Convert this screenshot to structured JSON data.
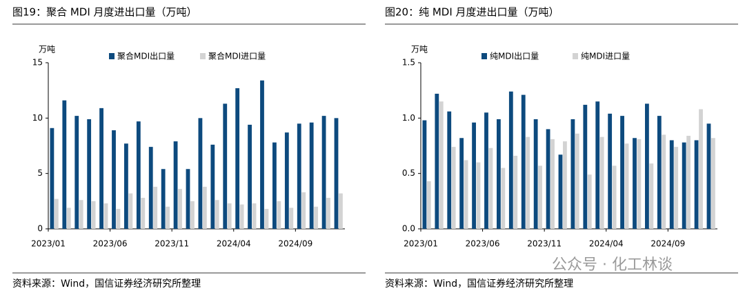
{
  "chart_data": [
    {
      "type": "bar",
      "title": "图19：聚合 MDI 月度进出口量（万吨）",
      "y_label": "万吨",
      "categories": [
        "2023/01",
        null,
        null,
        null,
        null,
        "2023/06",
        null,
        null,
        null,
        null,
        "2023/11",
        null,
        null,
        null,
        null,
        "2024/04",
        null,
        null,
        null,
        null,
        "2024/09",
        null,
        null,
        null
      ],
      "series": [
        {
          "name": "聚合MDI出口量",
          "color": "#0d4a7e",
          "values": [
            9.1,
            11.6,
            10.2,
            9.9,
            10.9,
            8.9,
            7.7,
            9.7,
            7.4,
            5.4,
            7.9,
            5.4,
            10.0,
            7.6,
            11.3,
            12.7,
            9.4,
            13.4,
            7.8,
            8.7,
            9.5,
            9.6,
            10.2,
            10.0
          ]
        },
        {
          "name": "聚合MDI进口量",
          "color": "#d3d3d3",
          "values": [
            2.7,
            1.9,
            2.6,
            2.5,
            2.3,
            1.8,
            3.2,
            2.8,
            3.8,
            2.0,
            3.6,
            2.5,
            3.8,
            2.6,
            2.3,
            2.2,
            2.3,
            1.8,
            2.5,
            1.9,
            3.3,
            2.0,
            2.8,
            3.2
          ]
        }
      ],
      "ylim": [
        0,
        15
      ],
      "yticks": [
        0,
        5,
        10,
        15
      ],
      "legend": "top",
      "source": "资料来源：Wind，国信证券经济研究所整理"
    },
    {
      "type": "bar",
      "title": "图20：纯 MDI 月度进出口量（万吨）",
      "y_label": "万吨",
      "categories": [
        "2023/01",
        null,
        null,
        null,
        null,
        "2023/06",
        null,
        null,
        null,
        null,
        "2023/11",
        null,
        null,
        null,
        null,
        "2024/04",
        null,
        null,
        null,
        null,
        "2024/09",
        null,
        null,
        null
      ],
      "series": [
        {
          "name": "纯MDI出口量",
          "color": "#0d4a7e",
          "values": [
            0.98,
            1.22,
            1.06,
            0.82,
            0.96,
            1.05,
            0.99,
            1.24,
            1.21,
            0.99,
            0.9,
            0.67,
            0.99,
            1.12,
            1.15,
            1.04,
            1.02,
            0.82,
            1.13,
            1.02,
            0.8,
            0.78,
            0.8,
            0.95
          ]
        },
        {
          "name": "纯MDI进口量",
          "color": "#d3d3d3",
          "values": [
            0.43,
            1.15,
            0.74,
            0.62,
            0.6,
            0.73,
            0.55,
            0.66,
            0.83,
            0.57,
            0.81,
            0.79,
            0.86,
            0.49,
            0.83,
            0.57,
            0.77,
            0.81,
            0.59,
            0.85,
            0.74,
            0.84,
            1.08,
            0.82
          ]
        }
      ],
      "ylim": [
        0,
        1.5
      ],
      "yticks": [
        {
          "value": 0,
          "label": "0.0"
        },
        0.5,
        {
          "value": 1,
          "label": "1.0"
        },
        1.5
      ],
      "legend": "top",
      "source": "资料来源：Wind，国信证券经济研究所整理"
    }
  ],
  "watermark": "公众号 · 化工林谈"
}
